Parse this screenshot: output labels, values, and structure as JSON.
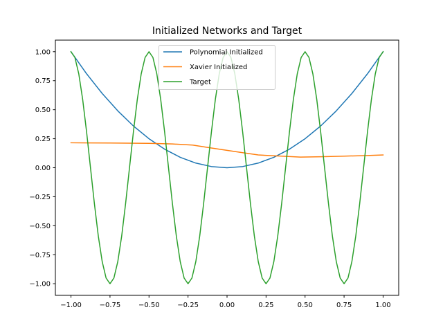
{
  "chart_data": {
    "type": "line",
    "title": "Initialized Networks and Target",
    "xlabel": "",
    "ylabel": "",
    "xlim": [
      -1.1,
      1.1
    ],
    "ylim": [
      -1.1,
      1.1
    ],
    "grid": false,
    "legend_position": "top-center",
    "x_ticks": [
      -1.0,
      -0.75,
      -0.5,
      -0.25,
      0.0,
      0.25,
      0.5,
      0.75,
      1.0
    ],
    "x_tick_labels": [
      "−1.00",
      "−0.75",
      "−0.50",
      "−0.25",
      "0.00",
      "0.25",
      "0.50",
      "0.75",
      "1.00"
    ],
    "y_ticks": [
      -1.0,
      -0.75,
      -0.5,
      -0.25,
      0.0,
      0.25,
      0.5,
      0.75,
      1.0
    ],
    "y_tick_labels": [
      "−1.00",
      "−0.75",
      "−0.50",
      "−0.25",
      "0.00",
      "0.25",
      "0.50",
      "0.75",
      "1.00"
    ],
    "series": [
      {
        "name": "Polynomial Initialized",
        "color": "#1f77b4",
        "x": [
          -1.0,
          -0.9,
          -0.8,
          -0.7,
          -0.6,
          -0.5,
          -0.4,
          -0.3,
          -0.2,
          -0.1,
          0.0,
          0.1,
          0.2,
          0.3,
          0.4,
          0.5,
          0.6,
          0.7,
          0.8,
          0.9,
          1.0
        ],
        "y": [
          1.0,
          0.81,
          0.64,
          0.49,
          0.36,
          0.25,
          0.16,
          0.09,
          0.04,
          0.01,
          0.0,
          0.01,
          0.04,
          0.09,
          0.16,
          0.25,
          0.36,
          0.49,
          0.64,
          0.81,
          1.0
        ]
      },
      {
        "name": "Xavier Initialized",
        "color": "#ff7f0e",
        "x": [
          -1.0,
          -0.75,
          -0.5,
          -0.35,
          -0.22,
          -0.1,
          0.0,
          0.1,
          0.2,
          0.35,
          0.47,
          0.6,
          0.75,
          0.9,
          1.0
        ],
        "y": [
          0.215,
          0.213,
          0.21,
          0.205,
          0.195,
          0.17,
          0.15,
          0.13,
          0.11,
          0.1,
          0.092,
          0.095,
          0.1,
          0.105,
          0.11
        ]
      },
      {
        "name": "Target",
        "color": "#2ca02c",
        "x": [
          -1.0,
          -0.975,
          -0.95,
          -0.925,
          -0.9,
          -0.875,
          -0.85,
          -0.825,
          -0.8,
          -0.775,
          -0.75,
          -0.725,
          -0.7,
          -0.675,
          -0.65,
          -0.625,
          -0.6,
          -0.575,
          -0.55,
          -0.525,
          -0.5,
          -0.475,
          -0.45,
          -0.425,
          -0.4,
          -0.375,
          -0.35,
          -0.325,
          -0.3,
          -0.275,
          -0.25,
          -0.225,
          -0.2,
          -0.175,
          -0.15,
          -0.125,
          -0.1,
          -0.075,
          -0.05,
          -0.025,
          0.0,
          0.025,
          0.05,
          0.075,
          0.1,
          0.125,
          0.15,
          0.175,
          0.2,
          0.225,
          0.25,
          0.275,
          0.3,
          0.325,
          0.35,
          0.375,
          0.4,
          0.425,
          0.45,
          0.475,
          0.5,
          0.525,
          0.55,
          0.575,
          0.6,
          0.625,
          0.65,
          0.675,
          0.7,
          0.725,
          0.75,
          0.775,
          0.8,
          0.825,
          0.85,
          0.875,
          0.9,
          0.925,
          0.95,
          0.975,
          1.0
        ],
        "y": [
          1.0,
          0.951,
          0.809,
          0.588,
          0.309,
          0.0,
          -0.309,
          -0.588,
          -0.809,
          -0.951,
          -1.0,
          -0.951,
          -0.809,
          -0.588,
          -0.309,
          0.0,
          0.309,
          0.588,
          0.809,
          0.951,
          1.0,
          0.951,
          0.809,
          0.588,
          0.309,
          0.0,
          -0.309,
          -0.588,
          -0.809,
          -0.951,
          -1.0,
          -0.951,
          -0.809,
          -0.588,
          -0.309,
          0.0,
          0.309,
          0.588,
          0.809,
          0.951,
          1.0,
          0.951,
          0.809,
          0.588,
          0.309,
          0.0,
          -0.309,
          -0.588,
          -0.809,
          -0.951,
          -1.0,
          -0.951,
          -0.809,
          -0.588,
          -0.309,
          0.0,
          0.309,
          0.588,
          0.809,
          0.951,
          1.0,
          0.951,
          0.809,
          0.588,
          0.309,
          0.0,
          -0.309,
          -0.588,
          -0.809,
          -0.951,
          -1.0,
          -0.951,
          -0.809,
          -0.588,
          -0.309,
          0.0,
          0.309,
          0.588,
          0.809,
          0.951,
          1.0
        ]
      }
    ]
  }
}
